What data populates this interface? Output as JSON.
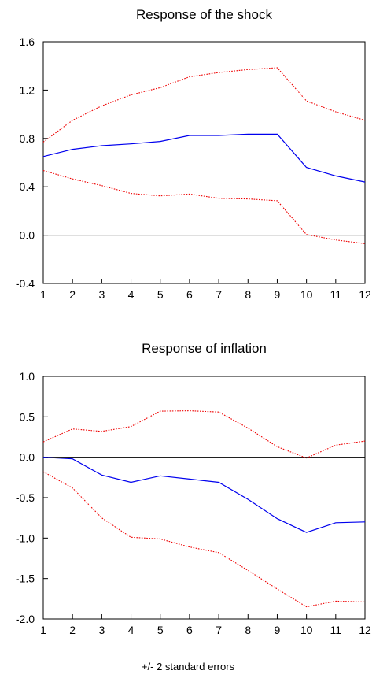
{
  "footer_text": "+/- 2 standard errors",
  "colors": {
    "response": "#0000ee",
    "bands": "#ee0000",
    "zero_line": "#000000",
    "frame": "#000000"
  },
  "chart_data": [
    {
      "type": "line",
      "title": "Response of the shock",
      "xlabel": "",
      "ylabel": "",
      "x": [
        1,
        2,
        3,
        4,
        5,
        6,
        7,
        8,
        9,
        10,
        11,
        12
      ],
      "ylim": [
        -0.4,
        1.6
      ],
      "yticks": [
        "-0.4",
        "0.0",
        "0.4",
        "0.8",
        "1.2",
        "1.6"
      ],
      "xticks": [
        "1",
        "2",
        "3",
        "4",
        "5",
        "6",
        "7",
        "8",
        "9",
        "10",
        "11",
        "12"
      ],
      "grid": false,
      "zero_line": true,
      "series": [
        {
          "role": "response",
          "style": "solid",
          "values": [
            0.65,
            0.71,
            0.74,
            0.755,
            0.775,
            0.825,
            0.825,
            0.835,
            0.835,
            0.56,
            0.49,
            0.44
          ]
        },
        {
          "role": "upper_band",
          "style": "dotted",
          "values": [
            0.77,
            0.95,
            1.07,
            1.16,
            1.22,
            1.31,
            1.345,
            1.37,
            1.385,
            1.11,
            1.02,
            0.95
          ]
        },
        {
          "role": "lower_band",
          "style": "dotted",
          "values": [
            0.535,
            0.465,
            0.41,
            0.345,
            0.325,
            0.34,
            0.305,
            0.3,
            0.285,
            0.005,
            -0.04,
            -0.07
          ]
        }
      ]
    },
    {
      "type": "line",
      "title": "Response of inflation",
      "xlabel": "",
      "ylabel": "",
      "x": [
        1,
        2,
        3,
        4,
        5,
        6,
        7,
        8,
        9,
        10,
        11,
        12
      ],
      "ylim": [
        -2.0,
        1.0
      ],
      "yticks": [
        "-2.0",
        "-1.5",
        "-1.0",
        "-0.5",
        "0.0",
        "0.5",
        "1.0"
      ],
      "xticks": [
        "1",
        "2",
        "3",
        "4",
        "5",
        "6",
        "7",
        "8",
        "9",
        "10",
        "11",
        "12"
      ],
      "grid": false,
      "zero_line": true,
      "series": [
        {
          "role": "response",
          "style": "solid",
          "values": [
            0.0,
            -0.02,
            -0.22,
            -0.31,
            -0.23,
            -0.27,
            -0.31,
            -0.52,
            -0.76,
            -0.93,
            -0.81,
            -0.8
          ]
        },
        {
          "role": "upper_band",
          "style": "dotted",
          "values": [
            0.19,
            0.35,
            0.32,
            0.38,
            0.57,
            0.575,
            0.56,
            0.36,
            0.13,
            -0.01,
            0.15,
            0.2
          ]
        },
        {
          "role": "lower_band",
          "style": "dotted",
          "values": [
            -0.18,
            -0.38,
            -0.75,
            -0.99,
            -1.01,
            -1.11,
            -1.18,
            -1.4,
            -1.63,
            -1.85,
            -1.78,
            -1.79
          ]
        }
      ]
    }
  ]
}
